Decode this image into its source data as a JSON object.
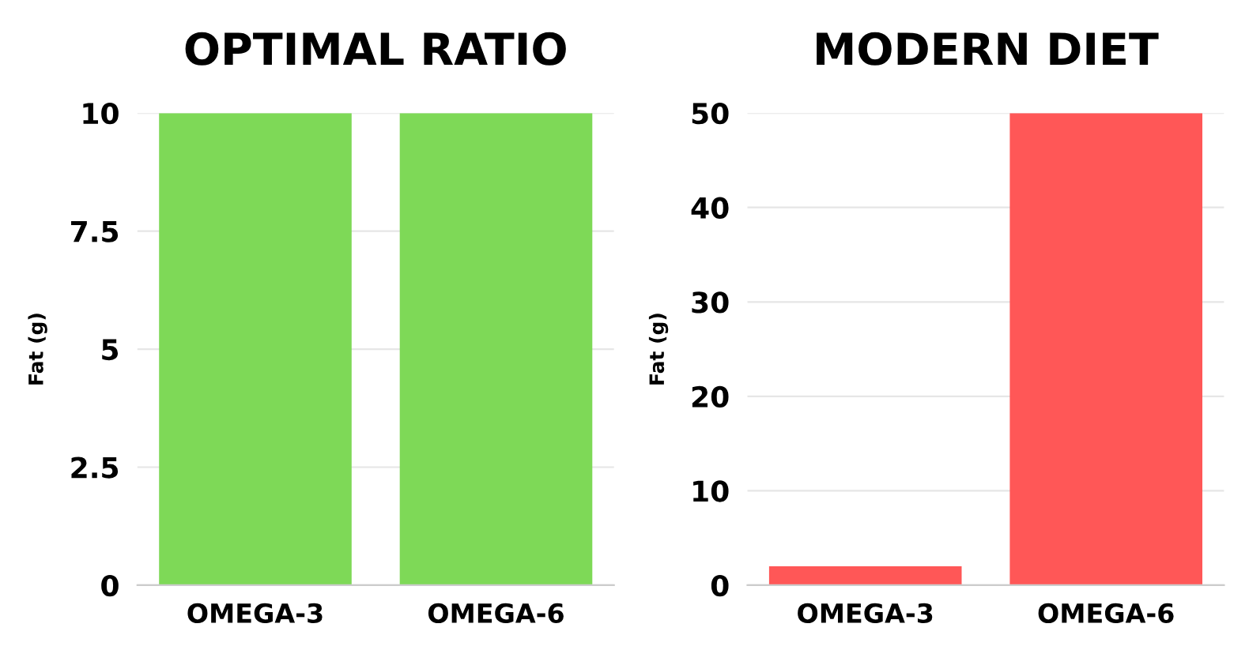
{
  "chart_data": [
    {
      "type": "bar",
      "title": "OPTIMAL RATIO",
      "ylabel": "Fat (g)",
      "categories": [
        "OMEGA-3",
        "OMEGA-6"
      ],
      "values": [
        10,
        10
      ],
      "color": "#7ed957",
      "ylim": [
        0,
        10
      ],
      "yticks": [
        0,
        2.5,
        5,
        7.5,
        10
      ],
      "grid": "y"
    },
    {
      "type": "bar",
      "title": "MODERN DIET",
      "ylabel": "Fat (g)",
      "categories": [
        "OMEGA-3",
        "OMEGA-6"
      ],
      "values": [
        2,
        50
      ],
      "color": "#ff5757",
      "ylim": [
        0,
        50
      ],
      "yticks": [
        0,
        10,
        20,
        30,
        40,
        50
      ],
      "grid": "y"
    }
  ]
}
